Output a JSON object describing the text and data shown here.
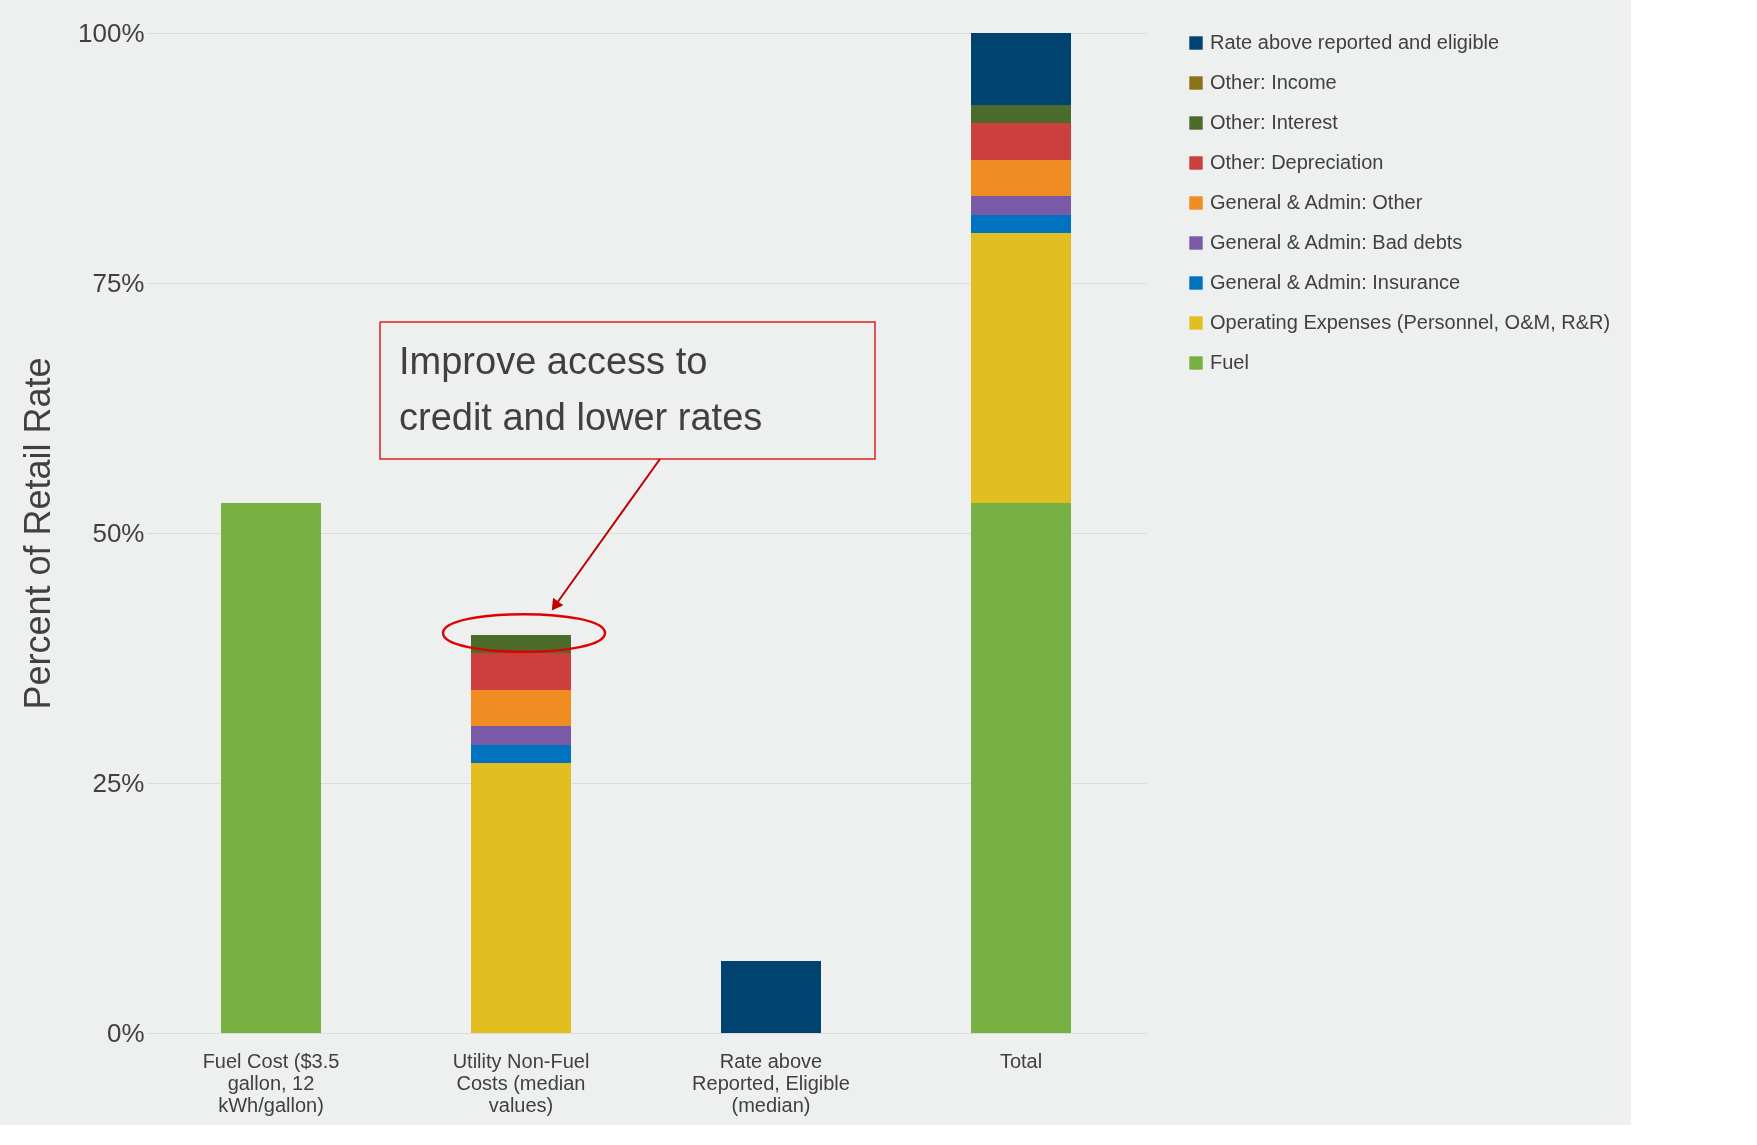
{
  "chart_data": {
    "type": "bar",
    "stacked": true,
    "ylabel": "Percent of Retail Rate",
    "categories": [
      "Fuel Cost ($3.5 gallon, 12 kWh/gallon)",
      "Utility Non-Fuel Costs (median values)",
      "Rate above Reported, Eligible (median)",
      "Total"
    ],
    "series": [
      {
        "name": "Fuel",
        "color": "#78b043",
        "values": [
          53,
          null,
          null,
          53
        ]
      },
      {
        "name": "Operating Expenses (Personnel, O&M, R&R)",
        "color": "#e2bf20",
        "values": [
          null,
          27,
          null,
          27
        ]
      },
      {
        "name": "General & Admin: Insurance",
        "color": "#0072c0",
        "values": [
          null,
          1.8,
          null,
          1.8
        ]
      },
      {
        "name": "General & Admin: Bad debts",
        "color": "#7a5aa6",
        "values": [
          null,
          1.9,
          null,
          1.9
        ]
      },
      {
        "name": "General & Admin: Other",
        "color": "#f08c22",
        "values": [
          null,
          3.6,
          null,
          3.6
        ]
      },
      {
        "name": "Other: Depreciation",
        "color": "#cc3f3c",
        "values": [
          null,
          3.7,
          null,
          3.7
        ]
      },
      {
        "name": "Other: Interest",
        "color": "#4a6b2a",
        "values": [
          null,
          1.8,
          null,
          1.8
        ]
      },
      {
        "name": "Other: Income",
        "color": "#8a7318",
        "values": [
          null,
          null,
          null,
          null
        ]
      },
      {
        "name": "Rate above reported and eligible",
        "color": "#004370",
        "values": [
          null,
          null,
          7.2,
          7.2
        ]
      }
    ],
    "ylim": [
      0,
      100
    ],
    "yticks": [
      {
        "value": 0,
        "label": "0%"
      },
      {
        "value": 25,
        "label": "25%"
      },
      {
        "value": 50,
        "label": "50%"
      },
      {
        "value": 75,
        "label": "75%"
      },
      {
        "value": 100,
        "label": "100%"
      }
    ],
    "grid": "y",
    "legend": "right",
    "annotations": [
      "Improve access to credit and lower rates"
    ]
  }
}
